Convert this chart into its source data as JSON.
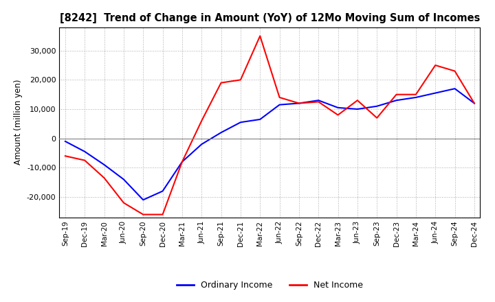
{
  "title": "[8242]  Trend of Change in Amount (YoY) of 12Mo Moving Sum of Incomes",
  "ylabel": "Amount (million yen)",
  "ylim": [
    -27000,
    38000
  ],
  "yticks": [
    -20000,
    -10000,
    0,
    10000,
    20000,
    30000
  ],
  "legend_labels": [
    "Ordinary Income",
    "Net Income"
  ],
  "line_colors": [
    "blue",
    "red"
  ],
  "x_labels": [
    "Sep-19",
    "Dec-19",
    "Mar-20",
    "Jun-20",
    "Sep-20",
    "Dec-20",
    "Mar-21",
    "Jun-21",
    "Sep-21",
    "Dec-21",
    "Mar-22",
    "Jun-22",
    "Sep-22",
    "Dec-22",
    "Mar-23",
    "Jun-23",
    "Sep-23",
    "Dec-23",
    "Mar-24",
    "Jun-24",
    "Sep-24",
    "Dec-24"
  ],
  "ordinary_income": [
    -1000,
    -4500,
    -9000,
    -14000,
    -21000,
    -18000,
    -8000,
    -2000,
    2000,
    5500,
    6500,
    11500,
    12000,
    13000,
    10500,
    10000,
    11000,
    13000,
    14000,
    15500,
    17000,
    12000
  ],
  "net_income": [
    -6000,
    -7500,
    -13500,
    -22000,
    -26000,
    -26000,
    -8000,
    6000,
    19000,
    20000,
    35000,
    14000,
    12000,
    12500,
    8000,
    13000,
    7000,
    15000,
    15000,
    25000,
    23000,
    12000
  ],
  "background_color": "#ffffff",
  "grid_color": "#aaaaaa"
}
